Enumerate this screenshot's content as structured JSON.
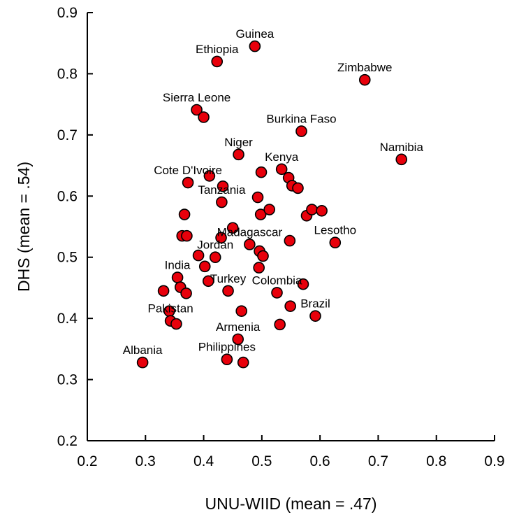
{
  "chart_data": {
    "type": "scatter",
    "title": "",
    "xlabel": "UNU-WIID (mean = .47)",
    "ylabel": "DHS (mean = .54)",
    "xlim": [
      0.2,
      0.9
    ],
    "ylim": [
      0.2,
      0.9
    ],
    "x_ticks": [
      "0.2",
      "0.3",
      "0.4",
      "0.5",
      "0.6",
      "0.7",
      "0.8",
      "0.9"
    ],
    "y_ticks": [
      "0.2",
      "0.3",
      "0.4",
      "0.5",
      "0.6",
      "0.7",
      "0.8",
      "0.9"
    ],
    "grid": false,
    "marker_color": "#e8000b",
    "marker_edge_color": "#000000",
    "points": [
      {
        "x": 0.295,
        "y": 0.328,
        "label": "Albania"
      },
      {
        "x": 0.331,
        "y": 0.445,
        "label": ""
      },
      {
        "x": 0.341,
        "y": 0.412,
        "label": ""
      },
      {
        "x": 0.343,
        "y": 0.396,
        "label": "Pakistan"
      },
      {
        "x": 0.353,
        "y": 0.391,
        "label": ""
      },
      {
        "x": 0.355,
        "y": 0.467,
        "label": "India"
      },
      {
        "x": 0.36,
        "y": 0.451,
        "label": ""
      },
      {
        "x": 0.363,
        "y": 0.535,
        "label": ""
      },
      {
        "x": 0.367,
        "y": 0.57,
        "label": ""
      },
      {
        "x": 0.37,
        "y": 0.441,
        "label": ""
      },
      {
        "x": 0.371,
        "y": 0.535,
        "label": ""
      },
      {
        "x": 0.373,
        "y": 0.622,
        "label": "Cote D'Ivoire"
      },
      {
        "x": 0.388,
        "y": 0.741,
        "label": "Sierra Leone"
      },
      {
        "x": 0.391,
        "y": 0.503,
        "label": ""
      },
      {
        "x": 0.4,
        "y": 0.729,
        "label": ""
      },
      {
        "x": 0.402,
        "y": 0.485,
        "label": ""
      },
      {
        "x": 0.408,
        "y": 0.461,
        "label": ""
      },
      {
        "x": 0.41,
        "y": 0.633,
        "label": ""
      },
      {
        "x": 0.42,
        "y": 0.5,
        "label": "Jordan"
      },
      {
        "x": 0.423,
        "y": 0.82,
        "label": "Ethiopia"
      },
      {
        "x": 0.43,
        "y": 0.532,
        "label": ""
      },
      {
        "x": 0.431,
        "y": 0.59,
        "label": "Tanzania"
      },
      {
        "x": 0.433,
        "y": 0.616,
        "label": ""
      },
      {
        "x": 0.44,
        "y": 0.333,
        "label": "Philippines"
      },
      {
        "x": 0.442,
        "y": 0.445,
        "label": "Turkey"
      },
      {
        "x": 0.45,
        "y": 0.548,
        "label": ""
      },
      {
        "x": 0.459,
        "y": 0.366,
        "label": "Armenia"
      },
      {
        "x": 0.46,
        "y": 0.668,
        "label": "Niger"
      },
      {
        "x": 0.465,
        "y": 0.412,
        "label": ""
      },
      {
        "x": 0.468,
        "y": 0.328,
        "label": ""
      },
      {
        "x": 0.479,
        "y": 0.521,
        "label": "Madagascar"
      },
      {
        "x": 0.488,
        "y": 0.845,
        "label": "Guinea"
      },
      {
        "x": 0.493,
        "y": 0.598,
        "label": ""
      },
      {
        "x": 0.495,
        "y": 0.483,
        "label": ""
      },
      {
        "x": 0.496,
        "y": 0.51,
        "label": ""
      },
      {
        "x": 0.498,
        "y": 0.57,
        "label": ""
      },
      {
        "x": 0.499,
        "y": 0.639,
        "label": ""
      },
      {
        "x": 0.502,
        "y": 0.502,
        "label": ""
      },
      {
        "x": 0.513,
        "y": 0.578,
        "label": ""
      },
      {
        "x": 0.526,
        "y": 0.442,
        "label": "Colombia"
      },
      {
        "x": 0.531,
        "y": 0.39,
        "label": ""
      },
      {
        "x": 0.534,
        "y": 0.644,
        "label": "Kenya"
      },
      {
        "x": 0.546,
        "y": 0.63,
        "label": ""
      },
      {
        "x": 0.548,
        "y": 0.527,
        "label": ""
      },
      {
        "x": 0.549,
        "y": 0.42,
        "label": ""
      },
      {
        "x": 0.552,
        "y": 0.617,
        "label": ""
      },
      {
        "x": 0.562,
        "y": 0.613,
        "label": ""
      },
      {
        "x": 0.568,
        "y": 0.706,
        "label": "Burkina Faso"
      },
      {
        "x": 0.571,
        "y": 0.456,
        "label": ""
      },
      {
        "x": 0.577,
        "y": 0.568,
        "label": ""
      },
      {
        "x": 0.586,
        "y": 0.578,
        "label": ""
      },
      {
        "x": 0.592,
        "y": 0.404,
        "label": "Brazil"
      },
      {
        "x": 0.603,
        "y": 0.576,
        "label": ""
      },
      {
        "x": 0.626,
        "y": 0.524,
        "label": "Lesotho"
      },
      {
        "x": 0.677,
        "y": 0.79,
        "label": "Zimbabwe"
      },
      {
        "x": 0.74,
        "y": 0.66,
        "label": "Namibia"
      }
    ]
  }
}
